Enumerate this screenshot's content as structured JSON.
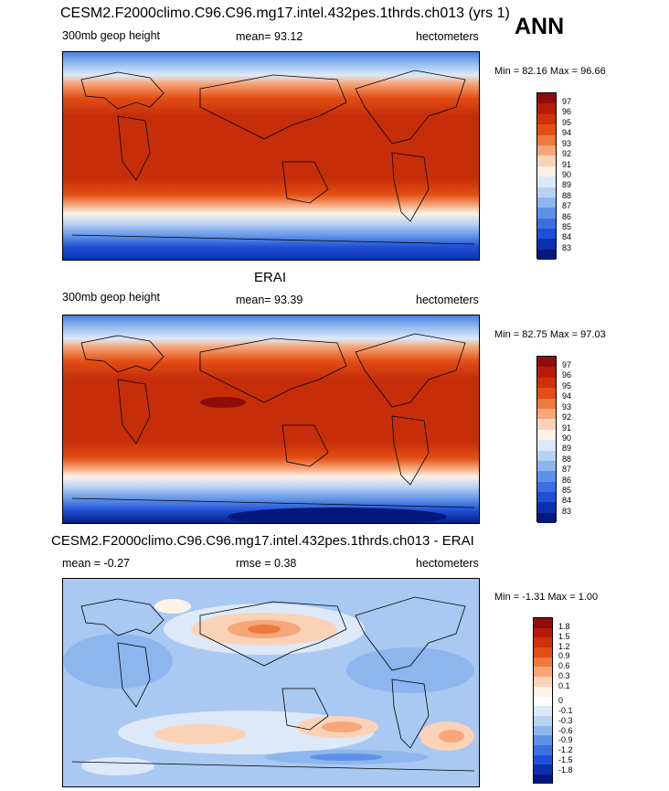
{
  "top_title": "CESM2.F2000climo.C96.C96.mg17.intel.432pes.1thrds.ch013 (yrs 1)",
  "season": "ANN",
  "panels": [
    {
      "title": "",
      "left_label": "300mb geop height",
      "center_label": "mean=  93.12",
      "units": "hectometers",
      "minmax": "Min =  82.16 Max =  96.66",
      "levels": [
        "97",
        "96",
        "95",
        "94",
        "93",
        "92",
        "91",
        "90",
        "89",
        "88",
        "87",
        "86",
        "85",
        "84",
        "83"
      ]
    },
    {
      "title": "ERAI",
      "left_label": "300mb geop height",
      "center_label": "mean=  93.39",
      "units": "hectometers",
      "minmax": "Min =  82.75 Max =  97.03",
      "levels": [
        "97",
        "96",
        "95",
        "94",
        "93",
        "92",
        "91",
        "90",
        "89",
        "88",
        "87",
        "86",
        "85",
        "84",
        "83"
      ]
    },
    {
      "title": "CESM2.F2000climo.C96.C96.mg17.intel.432pes.1thrds.ch013 - ERAI",
      "left_label": "mean =  -0.27",
      "center_label": "rmse =   0.38",
      "units": "hectometers",
      "minmax": "Min =  -1.31 Max =   1.00",
      "levels": [
        "1.8",
        "1.5",
        "1.2",
        "0.9",
        "0.6",
        "0.3",
        "0.1",
        "0",
        "-0.1",
        "-0.3",
        "-0.6",
        "-0.9",
        "-1.2",
        "-1.5",
        "-1.8"
      ]
    }
  ],
  "colors": {
    "field_scale": [
      "#8f0c0c",
      "#b71a08",
      "#d0300a",
      "#e24e14",
      "#ee7a3d",
      "#f6a679",
      "#fad3b7",
      "#fdf2e8",
      "#dde9f8",
      "#b8d2f4",
      "#8db6ee",
      "#5f92e7",
      "#3c6fe0",
      "#1f4fd6",
      "#0b2fae",
      "#04187a"
    ],
    "diff_scale": [
      "#8f0c0c",
      "#b71a08",
      "#d0300a",
      "#e24e14",
      "#ee7a3d",
      "#f6a679",
      "#fad3b7",
      "#fdf2e8",
      "#ffffff",
      "#dde9f8",
      "#b8d2f4",
      "#8db6ee",
      "#5f92e7",
      "#3c6fe0",
      "#1f4fd6",
      "#0b2fae",
      "#04187a"
    ]
  }
}
